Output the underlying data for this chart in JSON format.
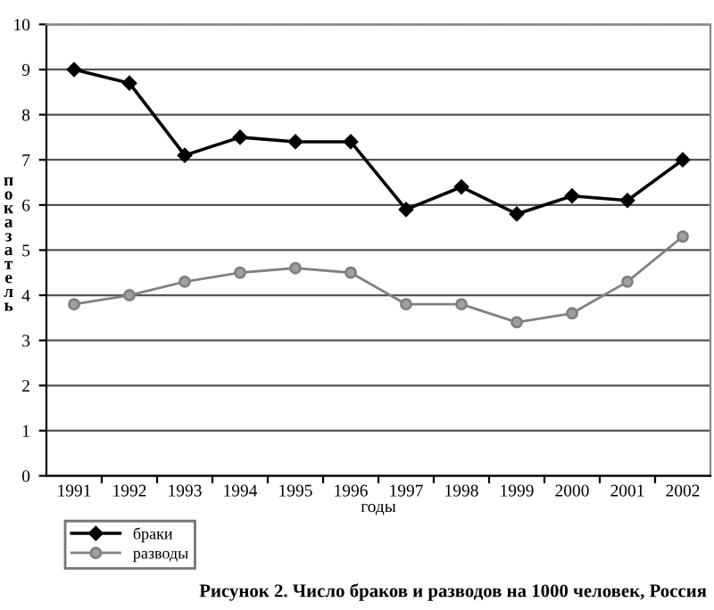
{
  "chart_data": {
    "type": "line",
    "title": "Рисунок 2. Число браков и разводов на 1000 человек, Россия",
    "xlabel": "годы",
    "ylabel": "показатель",
    "categories": [
      "1991",
      "1992",
      "1993",
      "1994",
      "1995",
      "1996",
      "1997",
      "1998",
      "1999",
      "2000",
      "2001",
      "2002"
    ],
    "series": [
      {
        "name": "браки",
        "color": "#000000",
        "marker": "diamond",
        "values": [
          9.0,
          8.7,
          7.1,
          7.5,
          7.4,
          7.4,
          5.9,
          6.4,
          5.8,
          6.2,
          6.1,
          7.0
        ]
      },
      {
        "name": "разводы",
        "color": "#808080",
        "marker": "circle",
        "values": [
          3.8,
          4.0,
          4.3,
          4.5,
          4.6,
          4.5,
          3.8,
          3.8,
          3.4,
          3.6,
          4.3,
          5.3
        ]
      }
    ],
    "ylim": [
      0,
      10
    ],
    "yticks": [
      0,
      1,
      2,
      3,
      4,
      5,
      6,
      7,
      8,
      9,
      10
    ],
    "grid": "y",
    "legend": "bottom left"
  }
}
